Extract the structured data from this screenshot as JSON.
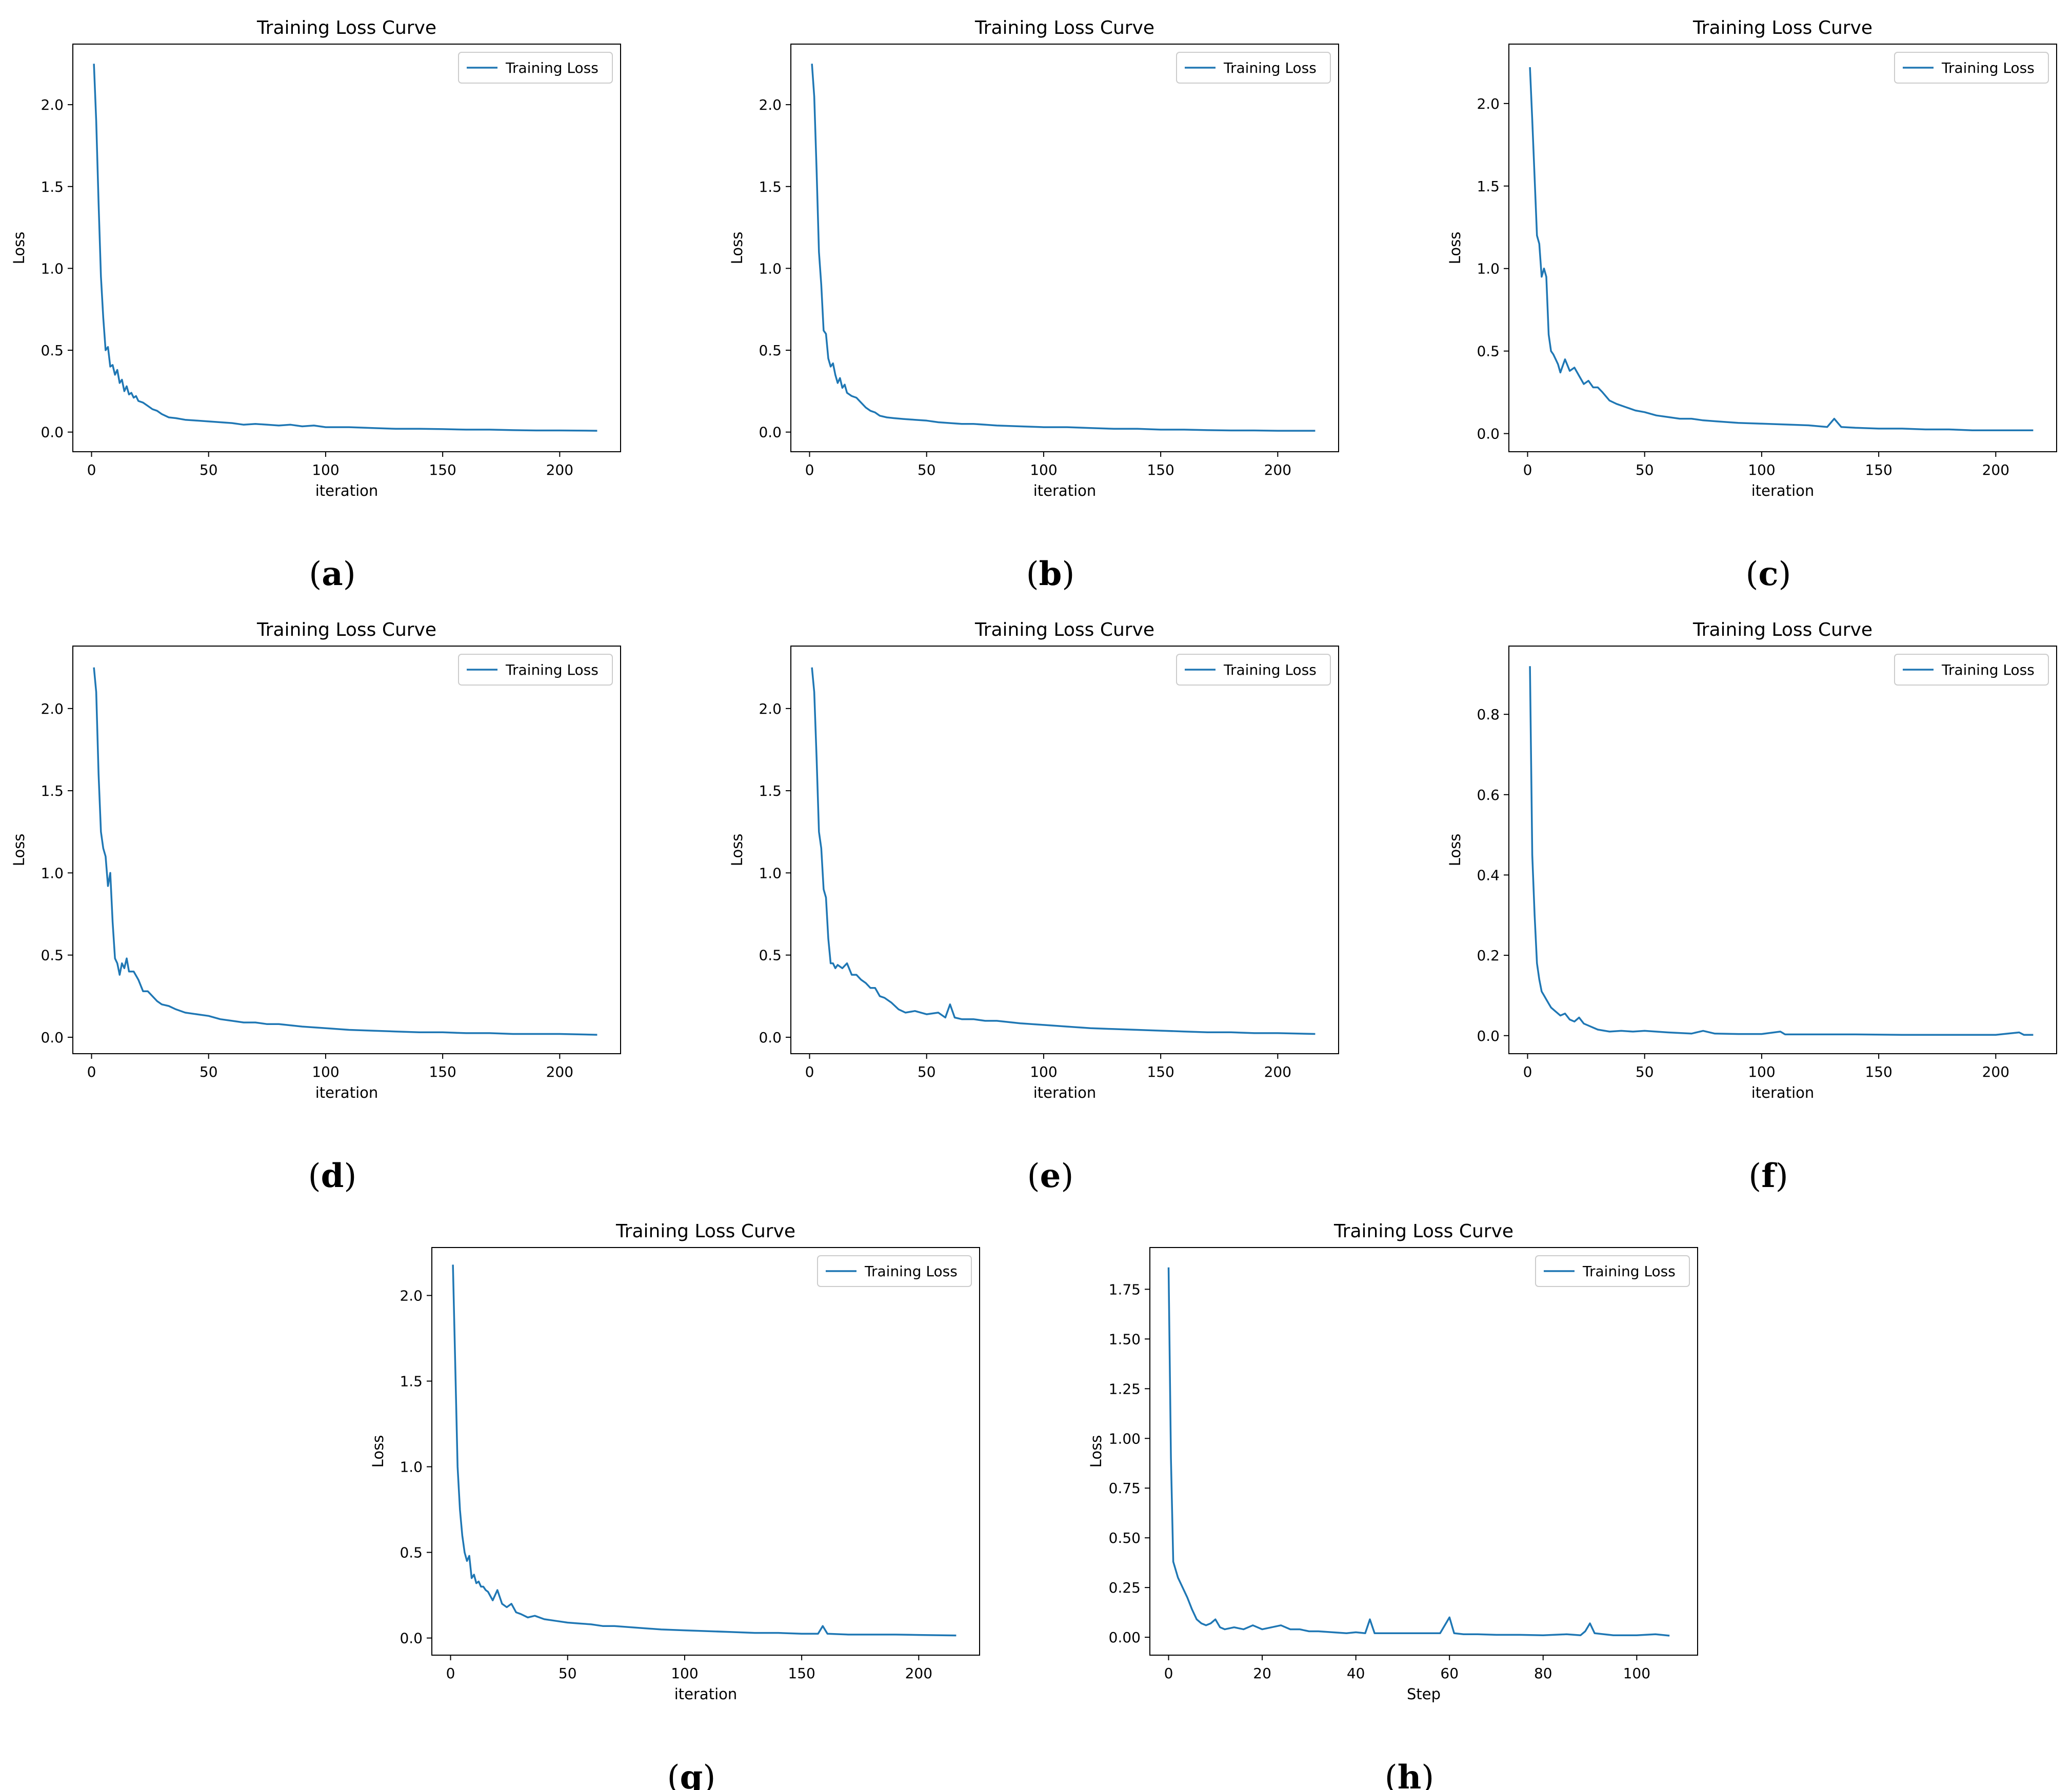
{
  "series_color": "#1f77b4",
  "chart_data": [
    {
      "id": "a",
      "caption": "a",
      "type": "line",
      "title": "Training Loss Curve",
      "xlabel": "iteration",
      "ylabel": "Loss",
      "legend": "Training Loss",
      "legend_position": "top-right",
      "xlim": [
        -8,
        226
      ],
      "ylim": [
        -0.12,
        2.37
      ],
      "xticks": [
        0,
        50,
        100,
        150,
        200
      ],
      "yticks": [
        0.0,
        0.5,
        1.0,
        1.5,
        2.0
      ],
      "ytick_labels": [
        "0.0",
        "0.5",
        "1.0",
        "1.5",
        "2.0"
      ],
      "x": [
        1,
        2,
        3,
        4,
        5,
        6,
        7,
        8,
        9,
        10,
        11,
        12,
        13,
        14,
        15,
        16,
        17,
        18,
        19,
        20,
        22,
        24,
        26,
        28,
        30,
        33,
        36,
        40,
        45,
        50,
        55,
        60,
        65,
        70,
        75,
        80,
        85,
        90,
        95,
        100,
        110,
        120,
        130,
        140,
        150,
        160,
        170,
        180,
        190,
        200,
        216
      ],
      "y": [
        2.25,
        1.9,
        1.4,
        0.95,
        0.7,
        0.5,
        0.52,
        0.4,
        0.41,
        0.35,
        0.38,
        0.3,
        0.32,
        0.25,
        0.28,
        0.23,
        0.24,
        0.21,
        0.22,
        0.19,
        0.18,
        0.16,
        0.14,
        0.13,
        0.11,
        0.09,
        0.085,
        0.075,
        0.07,
        0.065,
        0.06,
        0.055,
        0.045,
        0.05,
        0.045,
        0.04,
        0.045,
        0.035,
        0.04,
        0.03,
        0.03,
        0.025,
        0.02,
        0.02,
        0.018,
        0.015,
        0.015,
        0.012,
        0.01,
        0.01,
        0.008
      ]
    },
    {
      "id": "b",
      "caption": "b",
      "type": "line",
      "title": "Training Loss Curve",
      "xlabel": "iteration",
      "ylabel": "Loss",
      "legend": "Training Loss",
      "legend_position": "top-right",
      "xlim": [
        -8,
        226
      ],
      "ylim": [
        -0.12,
        2.37
      ],
      "xticks": [
        0,
        50,
        100,
        150,
        200
      ],
      "yticks": [
        0.0,
        0.5,
        1.0,
        1.5,
        2.0
      ],
      "ytick_labels": [
        "0.0",
        "0.5",
        "1.0",
        "1.5",
        "2.0"
      ],
      "x": [
        1,
        2,
        3,
        4,
        5,
        6,
        7,
        8,
        9,
        10,
        11,
        12,
        13,
        14,
        15,
        16,
        18,
        20,
        22,
        24,
        26,
        28,
        30,
        33,
        36,
        40,
        45,
        50,
        55,
        60,
        65,
        70,
        75,
        80,
        90,
        100,
        110,
        120,
        130,
        140,
        150,
        160,
        170,
        180,
        190,
        200,
        216
      ],
      "y": [
        2.25,
        2.05,
        1.6,
        1.1,
        0.9,
        0.62,
        0.6,
        0.45,
        0.4,
        0.42,
        0.35,
        0.3,
        0.33,
        0.27,
        0.29,
        0.24,
        0.22,
        0.21,
        0.18,
        0.15,
        0.13,
        0.12,
        0.1,
        0.09,
        0.085,
        0.08,
        0.075,
        0.07,
        0.06,
        0.055,
        0.05,
        0.05,
        0.045,
        0.04,
        0.035,
        0.03,
        0.03,
        0.025,
        0.02,
        0.02,
        0.015,
        0.015,
        0.012,
        0.01,
        0.01,
        0.008,
        0.008
      ]
    },
    {
      "id": "c",
      "caption": "c",
      "type": "line",
      "title": "Training Loss Curve",
      "xlabel": "iteration",
      "ylabel": "Loss",
      "legend": "Training Loss",
      "legend_position": "top-right",
      "xlim": [
        -8,
        226
      ],
      "ylim": [
        -0.11,
        2.36
      ],
      "xticks": [
        0,
        50,
        100,
        150,
        200
      ],
      "yticks": [
        0.0,
        0.5,
        1.0,
        1.5,
        2.0
      ],
      "ytick_labels": [
        "0.0",
        "0.5",
        "1.0",
        "1.5",
        "2.0"
      ],
      "x": [
        1,
        2,
        3,
        4,
        5,
        6,
        7,
        8,
        9,
        10,
        11,
        12,
        13,
        14,
        16,
        18,
        20,
        22,
        24,
        26,
        28,
        30,
        32,
        35,
        38,
        42,
        46,
        50,
        55,
        60,
        65,
        70,
        75,
        80,
        90,
        100,
        110,
        120,
        128,
        131,
        134,
        140,
        150,
        160,
        170,
        180,
        190,
        200,
        216
      ],
      "y": [
        2.22,
        1.9,
        1.55,
        1.2,
        1.15,
        0.95,
        1.0,
        0.95,
        0.6,
        0.5,
        0.48,
        0.45,
        0.42,
        0.37,
        0.45,
        0.38,
        0.4,
        0.35,
        0.3,
        0.32,
        0.28,
        0.28,
        0.25,
        0.2,
        0.18,
        0.16,
        0.14,
        0.13,
        0.11,
        0.1,
        0.09,
        0.09,
        0.08,
        0.075,
        0.065,
        0.06,
        0.055,
        0.05,
        0.04,
        0.09,
        0.04,
        0.035,
        0.03,
        0.03,
        0.025,
        0.025,
        0.02,
        0.02,
        0.02
      ]
    },
    {
      "id": "d",
      "caption": "d",
      "type": "line",
      "title": "Training Loss Curve",
      "xlabel": "iteration",
      "ylabel": "Loss",
      "legend": "Training Loss",
      "legend_position": "top-right",
      "xlim": [
        -8,
        226
      ],
      "ylim": [
        -0.1,
        2.38
      ],
      "xticks": [
        0,
        50,
        100,
        150,
        200
      ],
      "yticks": [
        0.0,
        0.5,
        1.0,
        1.5,
        2.0
      ],
      "ytick_labels": [
        "0.0",
        "0.5",
        "1.0",
        "1.5",
        "2.0"
      ],
      "x": [
        1,
        2,
        3,
        4,
        5,
        6,
        7,
        8,
        9,
        10,
        11,
        12,
        13,
        14,
        15,
        16,
        18,
        20,
        22,
        24,
        26,
        28,
        30,
        33,
        36,
        40,
        45,
        50,
        55,
        60,
        65,
        70,
        75,
        80,
        90,
        100,
        110,
        120,
        130,
        140,
        150,
        160,
        170,
        180,
        190,
        200,
        216
      ],
      "y": [
        2.25,
        2.1,
        1.6,
        1.25,
        1.15,
        1.1,
        0.92,
        1.0,
        0.7,
        0.48,
        0.45,
        0.38,
        0.45,
        0.42,
        0.48,
        0.4,
        0.4,
        0.35,
        0.28,
        0.28,
        0.25,
        0.22,
        0.2,
        0.19,
        0.17,
        0.15,
        0.14,
        0.13,
        0.11,
        0.1,
        0.09,
        0.09,
        0.08,
        0.08,
        0.065,
        0.055,
        0.045,
        0.04,
        0.035,
        0.03,
        0.03,
        0.025,
        0.025,
        0.02,
        0.02,
        0.02,
        0.015
      ]
    },
    {
      "id": "e",
      "caption": "e",
      "type": "line",
      "title": "Training Loss Curve",
      "xlabel": "iteration",
      "ylabel": "Loss",
      "legend": "Training Loss",
      "legend_position": "top-right",
      "xlim": [
        -8,
        226
      ],
      "ylim": [
        -0.1,
        2.38
      ],
      "xticks": [
        0,
        50,
        100,
        150,
        200
      ],
      "yticks": [
        0.0,
        0.5,
        1.0,
        1.5,
        2.0
      ],
      "ytick_labels": [
        "0.0",
        "0.5",
        "1.0",
        "1.5",
        "2.0"
      ],
      "x": [
        1,
        2,
        3,
        4,
        5,
        6,
        7,
        8,
        9,
        10,
        11,
        12,
        14,
        16,
        18,
        20,
        22,
        24,
        26,
        28,
        30,
        32,
        35,
        38,
        41,
        45,
        50,
        55,
        58,
        60,
        62,
        65,
        70,
        75,
        80,
        90,
        100,
        110,
        120,
        130,
        140,
        150,
        160,
        170,
        180,
        190,
        200,
        216
      ],
      "y": [
        2.25,
        2.1,
        1.7,
        1.25,
        1.15,
        0.9,
        0.85,
        0.6,
        0.45,
        0.45,
        0.42,
        0.44,
        0.42,
        0.45,
        0.38,
        0.38,
        0.35,
        0.33,
        0.3,
        0.3,
        0.25,
        0.24,
        0.21,
        0.17,
        0.15,
        0.16,
        0.14,
        0.15,
        0.12,
        0.2,
        0.12,
        0.11,
        0.11,
        0.1,
        0.1,
        0.085,
        0.075,
        0.065,
        0.055,
        0.05,
        0.045,
        0.04,
        0.035,
        0.03,
        0.03,
        0.025,
        0.025,
        0.02
      ]
    },
    {
      "id": "f",
      "caption": "f",
      "type": "line",
      "title": "Training Loss Curve",
      "xlabel": "iteration",
      "ylabel": "Loss",
      "legend": "Training Loss",
      "legend_position": "top-right",
      "xlim": [
        -8,
        226
      ],
      "ylim": [
        -0.045,
        0.97
      ],
      "xticks": [
        0,
        50,
        100,
        150,
        200
      ],
      "yticks": [
        0.0,
        0.2,
        0.4,
        0.6,
        0.8
      ],
      "ytick_labels": [
        "0.0",
        "0.2",
        "0.4",
        "0.6",
        "0.8"
      ],
      "x": [
        1,
        2,
        3,
        4,
        5,
        6,
        7,
        8,
        9,
        10,
        12,
        14,
        16,
        18,
        20,
        22,
        24,
        26,
        28,
        30,
        35,
        40,
        45,
        50,
        60,
        70,
        75,
        80,
        90,
        100,
        108,
        110,
        120,
        140,
        160,
        180,
        200,
        210,
        212,
        216
      ],
      "y": [
        0.92,
        0.45,
        0.3,
        0.18,
        0.14,
        0.11,
        0.1,
        0.09,
        0.08,
        0.07,
        0.06,
        0.05,
        0.055,
        0.04,
        0.035,
        0.045,
        0.03,
        0.025,
        0.02,
        0.015,
        0.01,
        0.012,
        0.01,
        0.012,
        0.008,
        0.005,
        0.012,
        0.005,
        0.004,
        0.004,
        0.01,
        0.003,
        0.003,
        0.003,
        0.002,
        0.002,
        0.002,
        0.008,
        0.002,
        0.002
      ]
    },
    {
      "id": "g",
      "caption": "g",
      "type": "line",
      "title": "Training Loss Curve",
      "xlabel": "iteration",
      "ylabel": "Loss",
      "legend": "Training Loss",
      "legend_position": "top-right",
      "xlim": [
        -8,
        226
      ],
      "ylim": [
        -0.1,
        2.28
      ],
      "xticks": [
        0,
        50,
        100,
        150,
        200
      ],
      "yticks": [
        0.0,
        0.5,
        1.0,
        1.5,
        2.0
      ],
      "ytick_labels": [
        "0.0",
        "0.5",
        "1.0",
        "1.5",
        "2.0"
      ],
      "x": [
        1,
        2,
        3,
        4,
        5,
        6,
        7,
        8,
        9,
        10,
        11,
        12,
        13,
        14,
        15,
        16,
        18,
        20,
        22,
        24,
        26,
        28,
        30,
        33,
        36,
        40,
        45,
        50,
        55,
        60,
        65,
        70,
        80,
        90,
        100,
        110,
        120,
        130,
        140,
        150,
        157,
        159,
        161,
        170,
        180,
        190,
        200,
        216
      ],
      "y": [
        2.18,
        1.6,
        1.0,
        0.75,
        0.6,
        0.5,
        0.45,
        0.48,
        0.35,
        0.37,
        0.32,
        0.33,
        0.3,
        0.3,
        0.28,
        0.27,
        0.22,
        0.28,
        0.2,
        0.18,
        0.2,
        0.15,
        0.14,
        0.12,
        0.13,
        0.11,
        0.1,
        0.09,
        0.085,
        0.08,
        0.07,
        0.07,
        0.06,
        0.05,
        0.045,
        0.04,
        0.035,
        0.03,
        0.03,
        0.025,
        0.025,
        0.07,
        0.025,
        0.02,
        0.02,
        0.02,
        0.018,
        0.015
      ]
    },
    {
      "id": "h",
      "caption": "h",
      "type": "line",
      "title": "Training Loss Curve",
      "xlabel": "Step",
      "ylabel": "Loss",
      "legend": "Training Loss",
      "legend_position": "top-right",
      "xlim": [
        -4,
        113
      ],
      "ylim": [
        -0.09,
        1.96
      ],
      "xticks": [
        0,
        20,
        40,
        60,
        80,
        100
      ],
      "yticks": [
        0.0,
        0.25,
        0.5,
        0.75,
        1.0,
        1.25,
        1.5,
        1.75
      ],
      "ytick_labels": [
        "0.00",
        "0.25",
        "0.50",
        "0.75",
        "1.00",
        "1.25",
        "1.50",
        "1.75"
      ],
      "x": [
        0,
        0.5,
        1,
        2,
        3,
        4,
        5,
        6,
        7,
        8,
        9,
        10,
        11,
        12,
        14,
        16,
        18,
        20,
        22,
        24,
        26,
        28,
        30,
        32,
        35,
        38,
        40,
        42,
        43,
        44,
        46,
        50,
        55,
        58,
        60,
        61,
        63,
        66,
        70,
        75,
        80,
        85,
        88,
        89,
        90,
        91,
        93,
        95,
        100,
        104,
        107
      ],
      "y": [
        1.86,
        0.9,
        0.38,
        0.3,
        0.25,
        0.2,
        0.14,
        0.09,
        0.07,
        0.06,
        0.07,
        0.09,
        0.05,
        0.04,
        0.05,
        0.04,
        0.06,
        0.04,
        0.05,
        0.06,
        0.04,
        0.04,
        0.03,
        0.03,
        0.025,
        0.02,
        0.025,
        0.02,
        0.09,
        0.02,
        0.02,
        0.02,
        0.02,
        0.02,
        0.1,
        0.02,
        0.015,
        0.015,
        0.012,
        0.012,
        0.01,
        0.015,
        0.01,
        0.03,
        0.07,
        0.02,
        0.015,
        0.01,
        0.01,
        0.015,
        0.008
      ]
    }
  ]
}
